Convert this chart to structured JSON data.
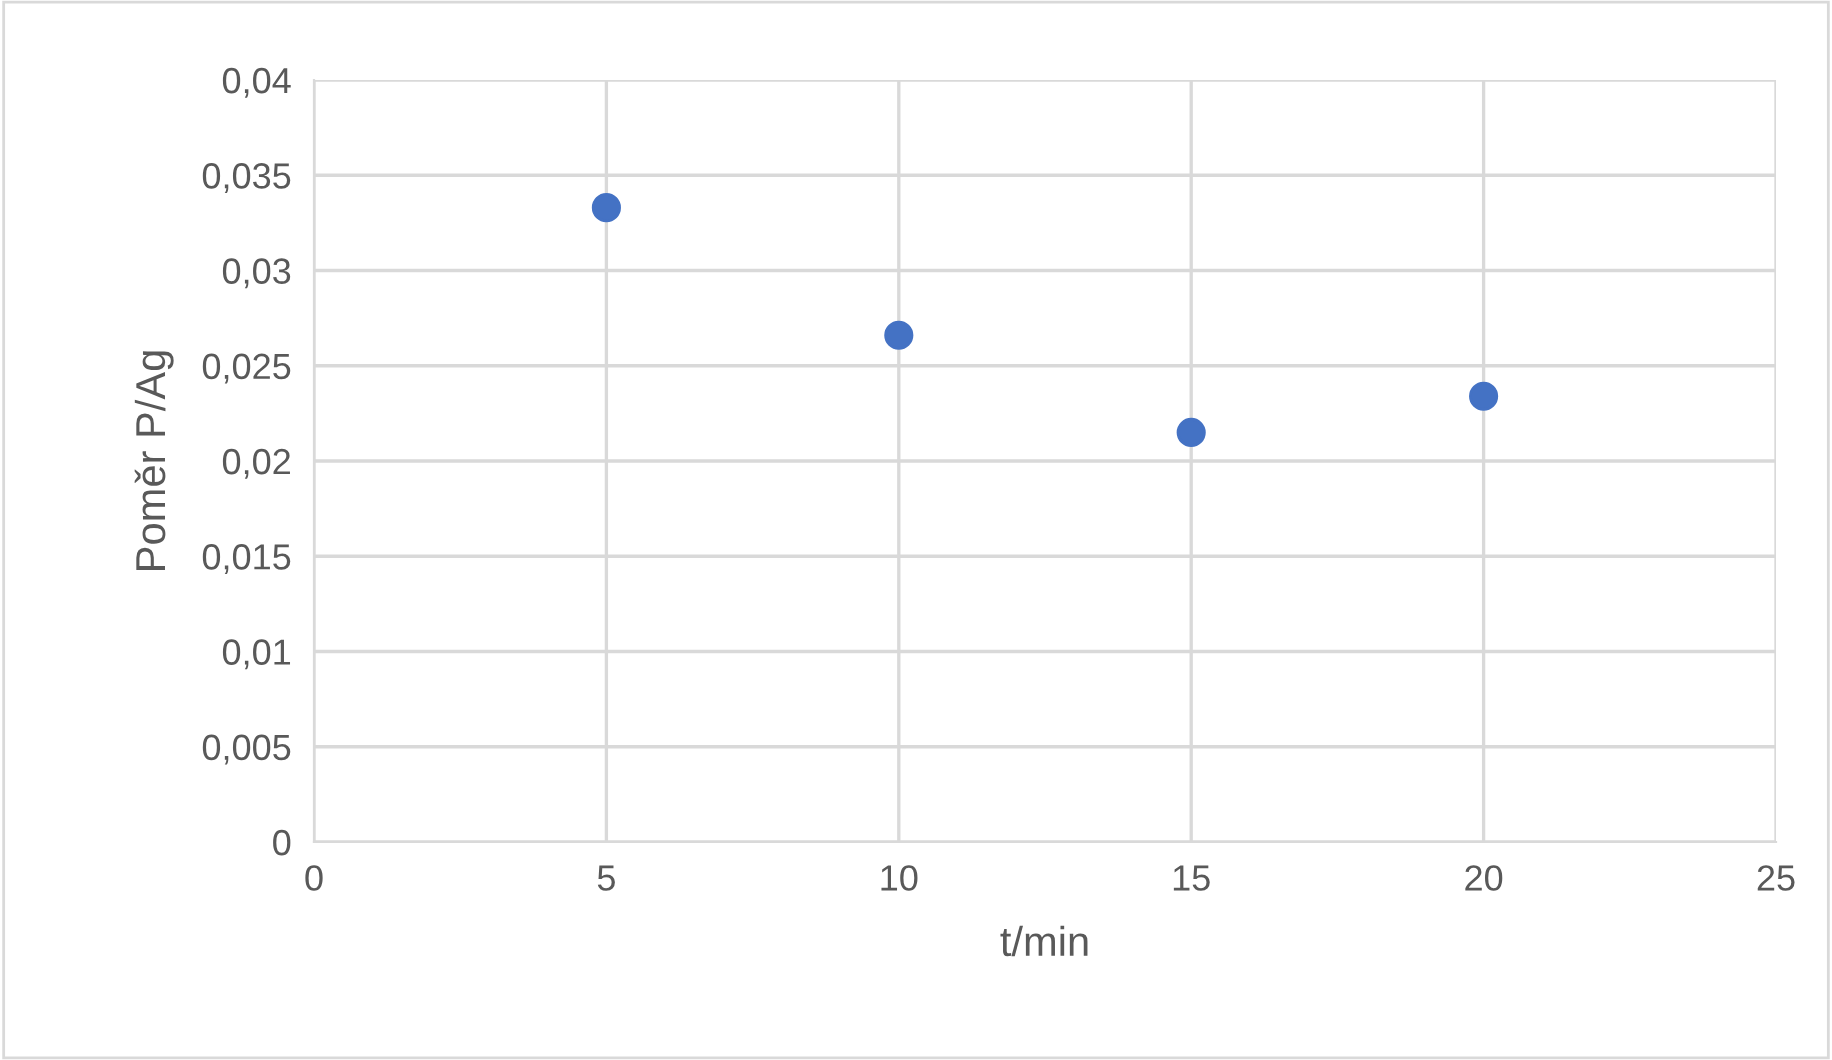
{
  "chart_data": {
    "type": "scatter",
    "xlabel": "t/min",
    "ylabel": "Poměr P/Ag",
    "x": [
      5,
      10,
      15,
      20
    ],
    "series": [
      {
        "color": "#4472c4",
        "values": [
          0.0333,
          0.0266,
          0.0215,
          0.0234
        ]
      }
    ],
    "xlim": [
      0,
      25
    ],
    "xticks": [
      0,
      5,
      10,
      15,
      20,
      25
    ],
    "ylim": [
      0,
      0.04
    ],
    "yticks": [
      0,
      {
        "value": 0.005,
        "label": "0,005"
      },
      {
        "value": 0.01,
        "label": "0,01"
      },
      {
        "value": 0.015,
        "label": "0,015"
      },
      {
        "value": 0.02,
        "label": "0,02"
      },
      {
        "value": 0.025,
        "label": "0,025"
      },
      {
        "value": 0.03,
        "label": "0,03"
      },
      {
        "value": 0.035,
        "label": "0,035"
      },
      {
        "value": 0.04,
        "label": "0,04"
      }
    ],
    "grid": true,
    "marker": "circle",
    "legend": false
  }
}
